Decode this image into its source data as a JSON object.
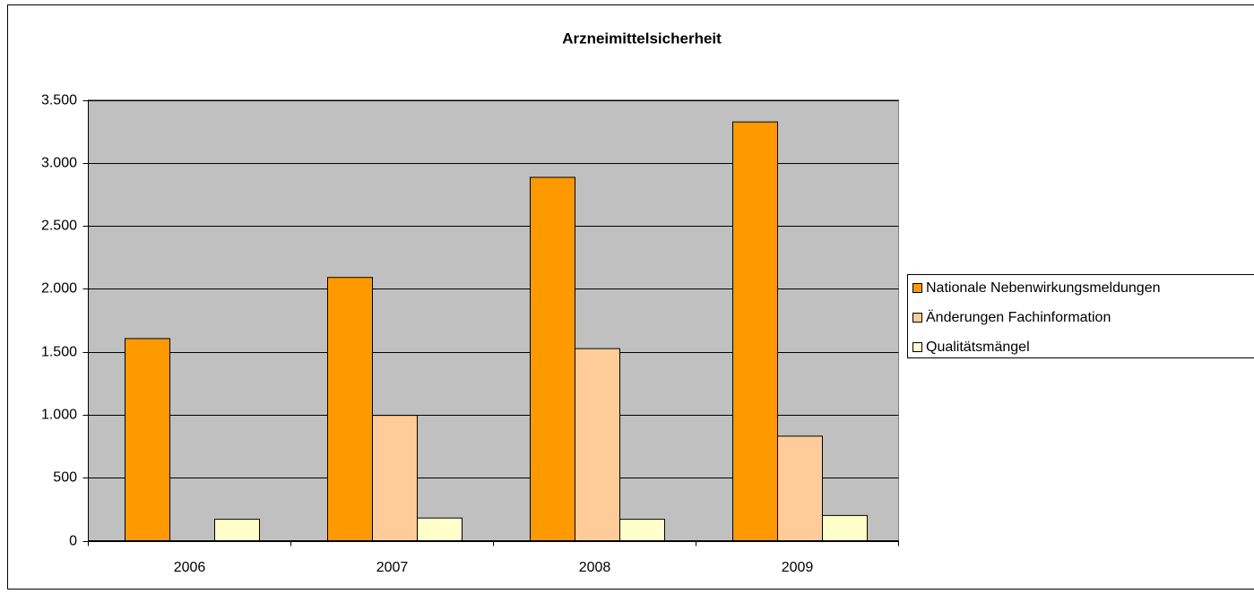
{
  "chart_data": {
    "type": "bar",
    "title": "Arzneimittelsicherheit",
    "categories": [
      "2006",
      "2007",
      "2008",
      "2009"
    ],
    "series": [
      {
        "name": "Nationale Nebenwirkungsmeldungen",
        "color": "#ff9900",
        "values": [
          1605,
          2090,
          2885,
          3325
        ]
      },
      {
        "name": "Änderungen Fachinformation",
        "color": "#ffcc99",
        "values": [
          null,
          995,
          1525,
          830
        ]
      },
      {
        "name": "Qualitätsmängel",
        "color": "#ffffcc",
        "values": [
          170,
          180,
          170,
          200
        ]
      }
    ],
    "ylim": [
      0,
      3500
    ],
    "yticks": [
      0,
      500,
      {
        "value": 1000,
        "label": "1.000"
      },
      {
        "value": 1500,
        "label": "1.500"
      },
      {
        "value": 2000,
        "label": "2.000"
      },
      {
        "value": 2500,
        "label": "2.500"
      },
      {
        "value": 3000,
        "label": "3.000"
      },
      {
        "value": 3500,
        "label": "3.500"
      }
    ],
    "grid": true,
    "legend": "right"
  }
}
